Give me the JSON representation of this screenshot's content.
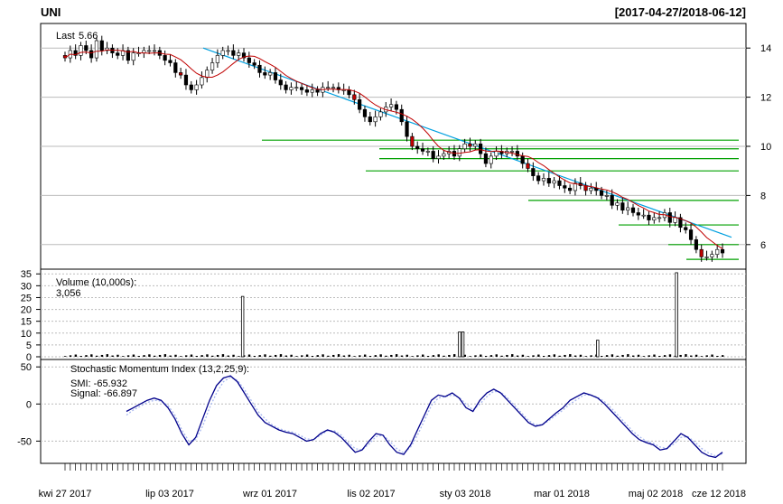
{
  "header": {
    "symbol": "UNI",
    "date_range": "[2017-04-27/2018-06-12]"
  },
  "chart_data": [
    {
      "type": "candlestick",
      "label": "Last",
      "last_value": "5.66",
      "ylim": [
        5,
        15
      ],
      "y_ticks": [
        6,
        8,
        10,
        12,
        14
      ],
      "grid": true,
      "ohlc_close": [
        13.6,
        13.9,
        13.7,
        14.1,
        13.9,
        13.6,
        14.3,
        13.9,
        14.0,
        13.8,
        13.7,
        13.9,
        13.5,
        13.8,
        13.8,
        13.9,
        13.9,
        13.9,
        13.7,
        13.5,
        13.4,
        13.0,
        12.9,
        12.5,
        12.3,
        12.5,
        12.8,
        13.1,
        13.4,
        13.7,
        13.9,
        13.9,
        13.7,
        13.8,
        13.6,
        13.4,
        13.3,
        13.0,
        12.9,
        13.0,
        12.7,
        12.5,
        12.3,
        12.4,
        12.4,
        12.3,
        12.2,
        12.3,
        12.2,
        12.4,
        12.4,
        12.4,
        12.3,
        12.3,
        12.1,
        11.9,
        11.5,
        11.2,
        11.0,
        11.2,
        11.4,
        11.6,
        11.7,
        11.5,
        11.0,
        10.4,
        10.0,
        9.9,
        9.8,
        9.8,
        9.5,
        9.6,
        9.7,
        9.8,
        9.6,
        9.9,
        10.1,
        10.0,
        10.1,
        9.7,
        9.3,
        9.6,
        9.8,
        9.7,
        9.8,
        9.8,
        9.6,
        9.3,
        9.1,
        8.8,
        8.6,
        8.7,
        8.5,
        8.6,
        8.4,
        8.3,
        8.2,
        8.5,
        8.4,
        8.2,
        8.3,
        8.2,
        8.0,
        8.0,
        7.6,
        7.7,
        7.4,
        7.5,
        7.3,
        7.2,
        7.2,
        7.0,
        7.1,
        7.1,
        7.3,
        6.9,
        7.1,
        6.7,
        6.6,
        6.2,
        5.8,
        5.5,
        5.5,
        5.6,
        5.8,
        5.66
      ],
      "moving_average": "red",
      "trend_line": {
        "color": "#00a0e0",
        "from": 14.0,
        "to": 6.3
      },
      "support_levels": [
        10.25,
        9.9,
        9.5,
        9.0,
        7.8,
        6.8,
        6.0,
        5.4
      ],
      "support_color": "#00a000"
    },
    {
      "type": "bar",
      "label": "Volume (10,000s):",
      "last_value": "3,056",
      "ylim": [
        0,
        37
      ],
      "y_ticks": [
        0,
        5,
        10,
        15,
        20,
        25,
        30,
        35
      ],
      "spikes": [
        {
          "pos": 0.27,
          "value": 25.5
        },
        {
          "pos": 0.6,
          "value": 10.5
        },
        {
          "pos": 0.605,
          "value": 10.5
        },
        {
          "pos": 0.81,
          "value": 7.0
        },
        {
          "pos": 0.93,
          "value": 35.5
        }
      ]
    },
    {
      "type": "line",
      "label": "Stochastic Momentum Index (13,2,25,9):",
      "smi_text": "SMI: -65.932",
      "signal_text": "Signal: -66.897",
      "ylim": [
        -80,
        60
      ],
      "y_ticks": [
        -50,
        0,
        50
      ],
      "smi_color": "#00008b",
      "signal_color": "#a8b8f0",
      "smi": [
        -10,
        -5,
        0,
        5,
        8,
        5,
        -5,
        -20,
        -40,
        -55,
        -45,
        -20,
        5,
        25,
        35,
        38,
        30,
        15,
        0,
        -15,
        -25,
        -30,
        -35,
        -38,
        -40,
        -45,
        -50,
        -48,
        -40,
        -35,
        -38,
        -45,
        -55,
        -65,
        -62,
        -50,
        -40,
        -42,
        -55,
        -65,
        -68,
        -55,
        -35,
        -15,
        5,
        12,
        10,
        15,
        8,
        -5,
        -10,
        5,
        15,
        20,
        15,
        5,
        -5,
        -15,
        -25,
        -30,
        -28,
        -20,
        -12,
        -5,
        5,
        10,
        15,
        12,
        8,
        0,
        -10,
        -20,
        -30,
        -40,
        -48,
        -52,
        -55,
        -62,
        -60,
        -50,
        -40,
        -45,
        -55,
        -65,
        -70,
        -72,
        -65
      ],
      "signal": [
        -15,
        -8,
        -3,
        2,
        5,
        4,
        -2,
        -15,
        -35,
        -50,
        -48,
        -30,
        -5,
        15,
        30,
        36,
        32,
        20,
        5,
        -10,
        -20,
        -28,
        -33,
        -36,
        -38,
        -42,
        -47,
        -48,
        -42,
        -36,
        -36,
        -42,
        -52,
        -60,
        -62,
        -54,
        -44,
        -42,
        -50,
        -60,
        -66,
        -58,
        -42,
        -22,
        -2,
        8,
        10,
        12,
        9,
        0,
        -8,
        0,
        10,
        17,
        16,
        8,
        -2,
        -12,
        -22,
        -28,
        -28,
        -22,
        -15,
        -8,
        0,
        6,
        12,
        12,
        9,
        3,
        -6,
        -16,
        -26,
        -36,
        -44,
        -50,
        -53,
        -58,
        -60,
        -54,
        -45,
        -44,
        -51,
        -60,
        -66,
        -70,
        -67
      ]
    }
  ],
  "x_axis": {
    "tick_labels": [
      "kwi 27 2017",
      "lip 03 2017",
      "wrz 01 2017",
      "lis 02 2017",
      "sty 03 2018",
      "mar 01 2018",
      "maj 02 2018",
      "cze 12 2018"
    ]
  }
}
